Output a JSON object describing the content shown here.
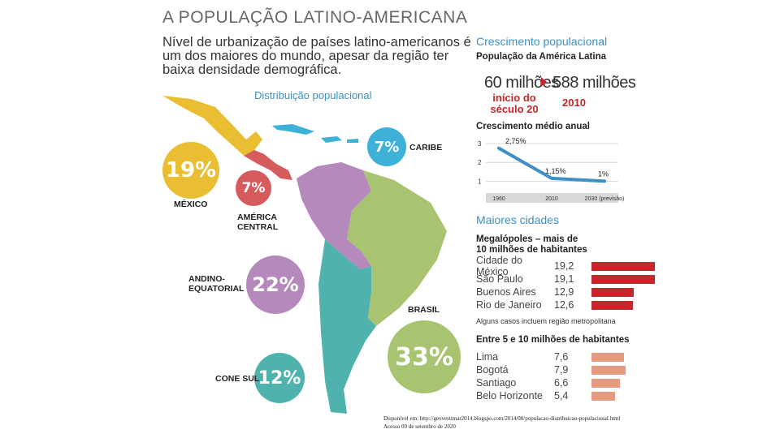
{
  "header": {
    "title": "A POPULAÇÃO LATINO-AMERICANA",
    "subtitle": "Nível de urbanização de países latino-americanos é um dos maiores do mundo, apesar da região ter baixa densidade demográfica."
  },
  "distribution": {
    "title": "Distribuição populacional",
    "regions": [
      {
        "label": "MÉXICO",
        "percent": "19%",
        "color": "#e9be33"
      },
      {
        "label": "AMÉRICA\nCENTRAL",
        "percent": "7%",
        "color": "#d65b5c"
      },
      {
        "label": "CARIBE",
        "percent": "7%",
        "color": "#3eb1d8"
      },
      {
        "label": "ANDINO-\nEQUATORIAL",
        "percent": "22%",
        "color": "#b689bd"
      },
      {
        "label": "BRASIL",
        "percent": "33%",
        "color": "#a9c470"
      },
      {
        "label": "CONE SUL",
        "percent": "12%",
        "color": "#4fb2ac"
      }
    ]
  },
  "growth": {
    "title": "Crescimento populacional",
    "subtitle": "População da América Latina",
    "start_value": "60 milhões",
    "start_label": "início do século 20",
    "end_value": "588 milhões",
    "end_label": "2010"
  },
  "annual_growth": {
    "title": "Crescimento médio anual",
    "chart_data": {
      "type": "line",
      "categories": [
        "1960",
        "2010",
        "2030 (previsão)"
      ],
      "values": [
        2.75,
        1.15,
        1.0
      ],
      "data_labels": [
        "2,75%",
        "1,15%",
        "1%"
      ],
      "y_ticks": [
        "3",
        "2",
        "1"
      ],
      "ylim": [
        0.5,
        3.3
      ]
    }
  },
  "cities": {
    "title": "Maiores cidades",
    "megalopoles_title": "Megalópoles – mais de 10 milhões de habitantes",
    "megalopoles": [
      {
        "name": "Cidade do México",
        "value": "19,2",
        "number": 19.2
      },
      {
        "name": "São Paulo",
        "value": "19,1",
        "number": 19.1
      },
      {
        "name": "Buenos Aires",
        "value": "12,9",
        "number": 12.9
      },
      {
        "name": "Rio de Janeiro",
        "value": "12,6",
        "number": 12.6
      }
    ],
    "note": "Alguns casos incluem região metropolitana",
    "medium_title": "Entre 5 e 10 milhões de habitantes",
    "medium": [
      {
        "name": "Lima",
        "value": "7,6",
        "number": 7.6
      },
      {
        "name": "Bogotá",
        "value": "7,9",
        "number": 7.9
      },
      {
        "name": "Santiago",
        "value": "6,6",
        "number": 6.6
      },
      {
        "name": "Belo Horizonte",
        "value": "5,4",
        "number": 5.4
      }
    ],
    "bar_color_large": "#c8262b",
    "bar_color_medium": "#e39a7f"
  },
  "footer": {
    "source": "Disponível em: http://geovestimar2014.blogspo.com/2014/08/populacao-distribuicao-populacional.html",
    "access": "Acesso 09 de setembro de 2020"
  }
}
